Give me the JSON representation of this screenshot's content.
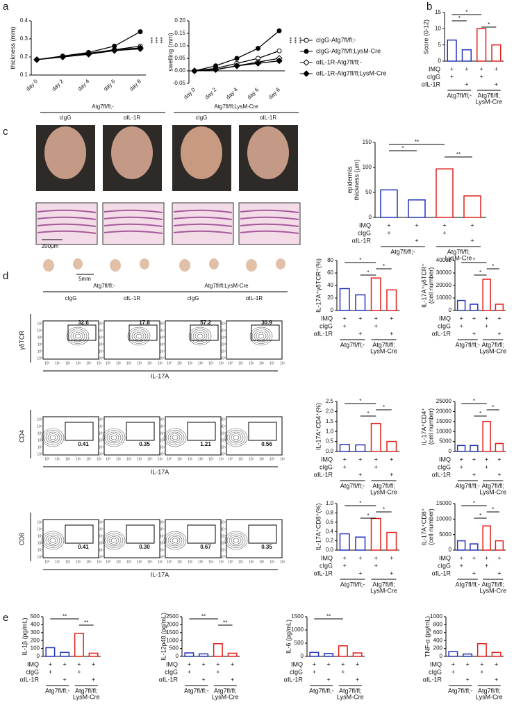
{
  "panel_labels": [
    "a",
    "b",
    "c",
    "d",
    "e"
  ],
  "genotypes": [
    "Atg7fl/fl;-",
    "Atg7fl/fl;LysM-Cre"
  ],
  "antibodies": [
    "cIgG",
    "αIL-1R"
  ],
  "treatments": [
    {
      "label": "IMQ",
      "marks": [
        "+",
        "+",
        "+",
        "+"
      ]
    },
    {
      "label": "cIgG",
      "marks": [
        "+",
        null,
        "+",
        null
      ]
    },
    {
      "label": "αIL-1R",
      "marks": [
        null,
        "+",
        null,
        "+"
      ]
    }
  ],
  "groups": [
    [
      "Atg7fl/fl;-"
    ],
    [
      "Atg7fl/fl;",
      "LysM-Cre"
    ]
  ],
  "photos": {
    "scale_histology": "200μm",
    "scale_node": "5mm"
  },
  "flow": {
    "xlabel": "IL-17A",
    "axis_ticks": [
      "10⁰",
      "10¹",
      "10²",
      "10³",
      "10⁴",
      "10⁵"
    ],
    "rows": [
      {
        "ylabel": "γδTCR",
        "values": [
          32.6,
          17.8,
          57.2,
          30.9
        ]
      },
      {
        "ylabel": "CD4",
        "values": [
          0.41,
          0.35,
          1.21,
          0.56
        ]
      },
      {
        "ylabel": "CD8",
        "values": [
          0.41,
          0.3,
          0.67,
          0.35
        ],
        "value_labels": [
          "0.41",
          "0.30",
          "0.67",
          "0.35"
        ]
      }
    ]
  },
  "chart_data": [
    {
      "type": "line",
      "ylabel": [
        "thickness (mm)"
      ],
      "categories": [
        "day 0",
        "day 2",
        "day 4",
        "day 6",
        "day 8"
      ],
      "ylim": [
        0.1,
        0.4
      ],
      "yticks": [
        0.1,
        0.2,
        0.3,
        0.4
      ],
      "series": [
        {
          "color": "#000",
          "marker": "circle-open",
          "values": [
            0.185,
            0.2,
            0.22,
            0.24,
            0.26
          ]
        },
        {
          "color": "#000",
          "marker": "circle",
          "values": [
            0.185,
            0.205,
            0.225,
            0.26,
            0.34
          ]
        },
        {
          "color": "#000",
          "marker": "diamond-open",
          "values": [
            0.185,
            0.2,
            0.215,
            0.235,
            0.245
          ]
        },
        {
          "color": "#000",
          "marker": "diamond",
          "values": [
            0.185,
            0.2,
            0.215,
            0.24,
            0.25
          ]
        }
      ],
      "annotations": [
        "***",
        "***",
        "***"
      ]
    },
    {
      "type": "line",
      "ylabel": [
        "swelling (mm)"
      ],
      "categories": [
        "day 0",
        "day 2",
        "day 4",
        "day 6",
        "day 8"
      ],
      "ylim": [
        -0.05,
        0.2
      ],
      "yticks": [
        -0.05,
        {
          "value": 0,
          "label": "0.00"
        },
        0.05,
        {
          "value": 0.1,
          "label": "0.10"
        },
        0.15,
        {
          "value": 0.2,
          "label": "0.20"
        }
      ],
      "series": [
        {
          "name": "cIgG-Atg7fl/fl;-",
          "color": "#000",
          "marker": "circle-open",
          "values": [
            0,
            0.01,
            0.03,
            0.05,
            0.08
          ]
        },
        {
          "name": "cIgG-Atg7fl/fl;LysM-Cre",
          "color": "#000",
          "marker": "circle",
          "values": [
            0,
            0.02,
            0.05,
            0.09,
            0.16
          ]
        },
        {
          "name": "αIL-1R-Atg7fl/fl;-",
          "color": "#000",
          "marker": "diamond-open",
          "values": [
            0,
            0.005,
            0.02,
            0.035,
            0.05
          ]
        },
        {
          "name": "αIL-1R-Atg7fl/fl;LysM-Cre",
          "color": "#000",
          "marker": "diamond",
          "values": [
            0,
            0.005,
            0.02,
            0.03,
            0.04
          ]
        }
      ],
      "annotations": [
        "***",
        "***",
        "***"
      ]
    },
    {
      "type": "bar",
      "ylabel": [
        "Score (0-12)"
      ],
      "ylim": [
        0,
        15
      ],
      "yticks": [
        0,
        5,
        10,
        15
      ],
      "values": [
        6.5,
        3.5,
        10,
        5
      ],
      "colors": [
        "#2233bb",
        "#2233bb",
        "#e0201b",
        "#e0201b"
      ],
      "annotations": [
        {
          "text": "*",
          "between": [
            0,
            2
          ]
        },
        {
          "text": "*",
          "between": [
            0,
            1
          ]
        },
        {
          "text": "*",
          "between": [
            2,
            3
          ]
        }
      ]
    },
    {
      "type": "bar",
      "ylabel": [
        "epidermis",
        "thickness (μm)"
      ],
      "ylim": [
        0,
        150
      ],
      "yticks": [
        0,
        50,
        100,
        150
      ],
      "values": [
        55,
        35,
        97,
        43
      ],
      "colors": [
        "#2233bb",
        "#2233bb",
        "#e0201b",
        "#e0201b"
      ],
      "annotations": [
        {
          "text": "**",
          "between": [
            0,
            2
          ]
        },
        {
          "text": "*",
          "between": [
            0,
            1
          ]
        },
        {
          "text": "**",
          "between": [
            2,
            3
          ]
        }
      ]
    },
    {
      "type": "bar",
      "ylabel": [
        "IL-17A⁺γδTCR⁺(%)"
      ],
      "ylim": [
        0,
        80
      ],
      "yticks": [
        0,
        20,
        40,
        60,
        80
      ],
      "values": [
        35,
        25,
        52,
        33
      ],
      "colors": [
        "#2233bb",
        "#2233bb",
        "#e0201b",
        "#e0201b"
      ],
      "annotations": [
        {
          "text": "*",
          "between": [
            0,
            2
          ]
        },
        {
          "text": "*",
          "between": [
            2,
            3
          ]
        },
        {
          "text": "*",
          "between": [
            1,
            2
          ]
        }
      ]
    },
    {
      "type": "bar",
      "ylabel": [
        "IL-17A⁺γδTCR⁺",
        "(cell number)"
      ],
      "ylim": [
        0,
        40000
      ],
      "yticks": [
        0,
        10000,
        20000,
        30000,
        40000
      ],
      "values": [
        8000,
        5000,
        25000,
        5000
      ],
      "colors": [
        "#2233bb",
        "#2233bb",
        "#e0201b",
        "#e0201b"
      ],
      "annotations": [
        {
          "text": "*",
          "between": [
            0,
            2
          ]
        },
        {
          "text": "*",
          "between": [
            2,
            3
          ]
        },
        {
          "text": "*",
          "between": [
            1,
            2
          ]
        }
      ]
    },
    {
      "type": "bar",
      "ylabel": [
        "IL-17A⁺CD4⁺(%)"
      ],
      "ylim": [
        0,
        2.5
      ],
      "yticks": [
        {
          "value": 0,
          "label": "0.0"
        },
        0.5,
        {
          "value": 1,
          "label": "1.0"
        },
        1.5,
        {
          "value": 2,
          "label": "2.0"
        },
        2.5
      ],
      "values": [
        0.35,
        0.33,
        1.4,
        0.5
      ],
      "colors": [
        "#2233bb",
        "#2233bb",
        "#e0201b",
        "#e0201b"
      ],
      "annotations": [
        {
          "text": "*",
          "between": [
            0,
            2
          ]
        },
        {
          "text": "*",
          "between": [
            2,
            3
          ]
        },
        {
          "text": "*",
          "between": [
            1,
            2
          ]
        }
      ]
    },
    {
      "type": "bar",
      "ylabel": [
        "IL-17A⁺CD4⁺",
        "(cell number)"
      ],
      "ylim": [
        0,
        25000
      ],
      "yticks": [
        0,
        5000,
        10000,
        15000,
        20000,
        25000
      ],
      "values": [
        3000,
        3000,
        15000,
        4000
      ],
      "colors": [
        "#2233bb",
        "#2233bb",
        "#e0201b",
        "#e0201b"
      ],
      "annotations": [
        {
          "text": "*",
          "between": [
            0,
            2
          ]
        },
        {
          "text": "*",
          "between": [
            2,
            3
          ]
        },
        {
          "text": "*",
          "between": [
            1,
            2
          ]
        }
      ]
    },
    {
      "type": "bar",
      "ylabel": [
        "IL-17A⁺CD8⁺(%)"
      ],
      "ylim": [
        0,
        1
      ],
      "yticks": [
        {
          "value": 0,
          "label": "0.0"
        },
        0.2,
        0.4,
        0.6,
        0.8,
        {
          "value": 1,
          "label": "1.0"
        }
      ],
      "values": [
        0.35,
        0.28,
        0.68,
        0.38
      ],
      "colors": [
        "#2233bb",
        "#2233bb",
        "#e0201b",
        "#e0201b"
      ],
      "annotations": [
        {
          "text": "*",
          "between": [
            0,
            2
          ]
        },
        {
          "text": "*",
          "between": [
            2,
            3
          ]
        },
        {
          "text": "*",
          "between": [
            1,
            2
          ]
        }
      ]
    },
    {
      "type": "bar",
      "ylabel": [
        "IL-17A⁺CD8⁺",
        "(cell number)"
      ],
      "ylim": [
        0,
        15000
      ],
      "yticks": [
        0,
        5000,
        10000,
        15000
      ],
      "values": [
        3000,
        2000,
        7800,
        3000
      ],
      "colors": [
        "#2233bb",
        "#2233bb",
        "#e0201b",
        "#e0201b"
      ],
      "annotations": [
        {
          "text": "*",
          "between": [
            0,
            2
          ]
        },
        {
          "text": "*",
          "between": [
            2,
            3
          ]
        },
        {
          "text": "*",
          "between": [
            1,
            2
          ]
        }
      ]
    },
    {
      "type": "bar",
      "ylabel": [
        "IL-1β (pg/mL)"
      ],
      "ylim": [
        0,
        500
      ],
      "yticks": [
        0,
        100,
        200,
        300,
        400,
        500
      ],
      "values": [
        110,
        50,
        290,
        40
      ],
      "colors": [
        "#2233bb",
        "#2233bb",
        "#e0201b",
        "#e0201b"
      ],
      "annotations": [
        {
          "text": "**",
          "between": [
            0,
            2
          ]
        },
        {
          "text": "**",
          "between": [
            2,
            3
          ]
        }
      ]
    },
    {
      "type": "bar",
      "ylabel": [
        "IL-12p40 (pg/mL)"
      ],
      "ylim": [
        0,
        2500
      ],
      "yticks": [
        0,
        500,
        1000,
        1500,
        2000,
        2500
      ],
      "values": [
        220,
        160,
        800,
        200
      ],
      "colors": [
        "#2233bb",
        "#2233bb",
        "#e0201b",
        "#e0201b"
      ],
      "annotations": [
        {
          "text": "**",
          "between": [
            0,
            2
          ]
        },
        {
          "text": "**",
          "between": [
            2,
            3
          ]
        }
      ]
    },
    {
      "type": "bar",
      "ylabel": [
        "IL-6 (pg/mL)"
      ],
      "ylim": [
        0,
        1500
      ],
      "yticks": [
        0,
        500,
        1000,
        1500
      ],
      "values": [
        150,
        110,
        400,
        130
      ],
      "colors": [
        "#2233bb",
        "#2233bb",
        "#e0201b",
        "#e0201b"
      ],
      "annotations": [
        {
          "text": "**",
          "between": [
            0,
            2
          ]
        }
      ]
    },
    {
      "type": "bar",
      "ylabel": [
        "TNF-α (pg/mL)"
      ],
      "ylim": [
        0,
        1000
      ],
      "yticks": [
        0,
        200,
        400,
        600,
        800,
        1000
      ],
      "values": [
        120,
        60,
        320,
        100
      ],
      "colors": [
        "#2233bb",
        "#2233bb",
        "#e0201b",
        "#e0201b"
      ],
      "annotations": []
    }
  ]
}
